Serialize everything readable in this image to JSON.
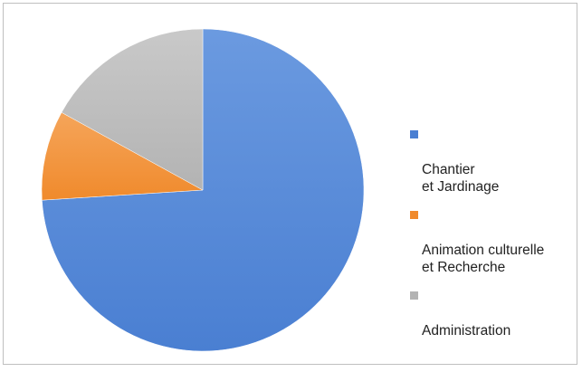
{
  "chart_data": {
    "type": "pie",
    "categories": [
      "Chantier\net Jardinage",
      "Animation culturelle\net Recherche",
      "Administration"
    ],
    "values": [
      74,
      9,
      17
    ],
    "colors": [
      "#4a7fd2",
      "#f08a2c",
      "#b3b3b3"
    ],
    "highlight_colors": [
      "#6b9ae0",
      "#f5a55a",
      "#c9c9c9"
    ],
    "legend_position": "right",
    "title": ""
  }
}
